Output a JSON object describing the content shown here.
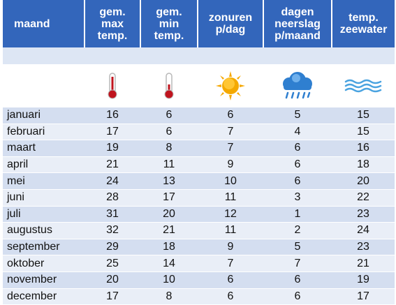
{
  "headers": {
    "maand": [
      "maand"
    ],
    "max": [
      "gem.",
      "max",
      "temp."
    ],
    "min": [
      "gem.",
      "min",
      "temp."
    ],
    "zon": [
      "zonuren",
      "p/dag"
    ],
    "regen": [
      "dagen",
      "neerslag",
      "p/maand"
    ],
    "zee": [
      "temp.",
      "zeewater"
    ]
  },
  "icons": [
    "thermometer-high-icon",
    "thermometer-low-icon",
    "sun-icon",
    "rain-cloud-icon",
    "waves-icon"
  ],
  "colors": {
    "header": "#3366bb",
    "row_odd": "#d4def0",
    "row_even": "#e9eef7",
    "sun": "#f6a800",
    "thermo": "#c0141e",
    "water": "#4aa3e0"
  },
  "rows": [
    {
      "maand": "januari",
      "max": "16",
      "min": "6",
      "zon": "6",
      "regen": "5",
      "zee": "15"
    },
    {
      "maand": "februari",
      "max": "17",
      "min": "6",
      "zon": "7",
      "regen": "4",
      "zee": "15"
    },
    {
      "maand": "maart",
      "max": "19",
      "min": "8",
      "zon": "7",
      "regen": "6",
      "zee": "16"
    },
    {
      "maand": "april",
      "max": "21",
      "min": "11",
      "zon": "9",
      "regen": "6",
      "zee": "18"
    },
    {
      "maand": "mei",
      "max": "24",
      "min": "13",
      "zon": "10",
      "regen": "6",
      "zee": "20"
    },
    {
      "maand": "juni",
      "max": "28",
      "min": "17",
      "zon": "11",
      "regen": "3",
      "zee": "22"
    },
    {
      "maand": "juli",
      "max": "31",
      "min": "20",
      "zon": "12",
      "regen": "1",
      "zee": "23"
    },
    {
      "maand": "augustus",
      "max": "32",
      "min": "21",
      "zon": "11",
      "regen": "2",
      "zee": "24"
    },
    {
      "maand": "september",
      "max": "29",
      "min": "18",
      "zon": "9",
      "regen": "5",
      "zee": "23"
    },
    {
      "maand": "oktober",
      "max": "25",
      "min": "14",
      "zon": "7",
      "regen": "7",
      "zee": "21"
    },
    {
      "maand": "november",
      "max": "20",
      "min": "10",
      "zon": "6",
      "regen": "6",
      "zee": "19"
    },
    {
      "maand": "december",
      "max": "17",
      "min": "8",
      "zon": "6",
      "regen": "6",
      "zee": "17"
    }
  ]
}
